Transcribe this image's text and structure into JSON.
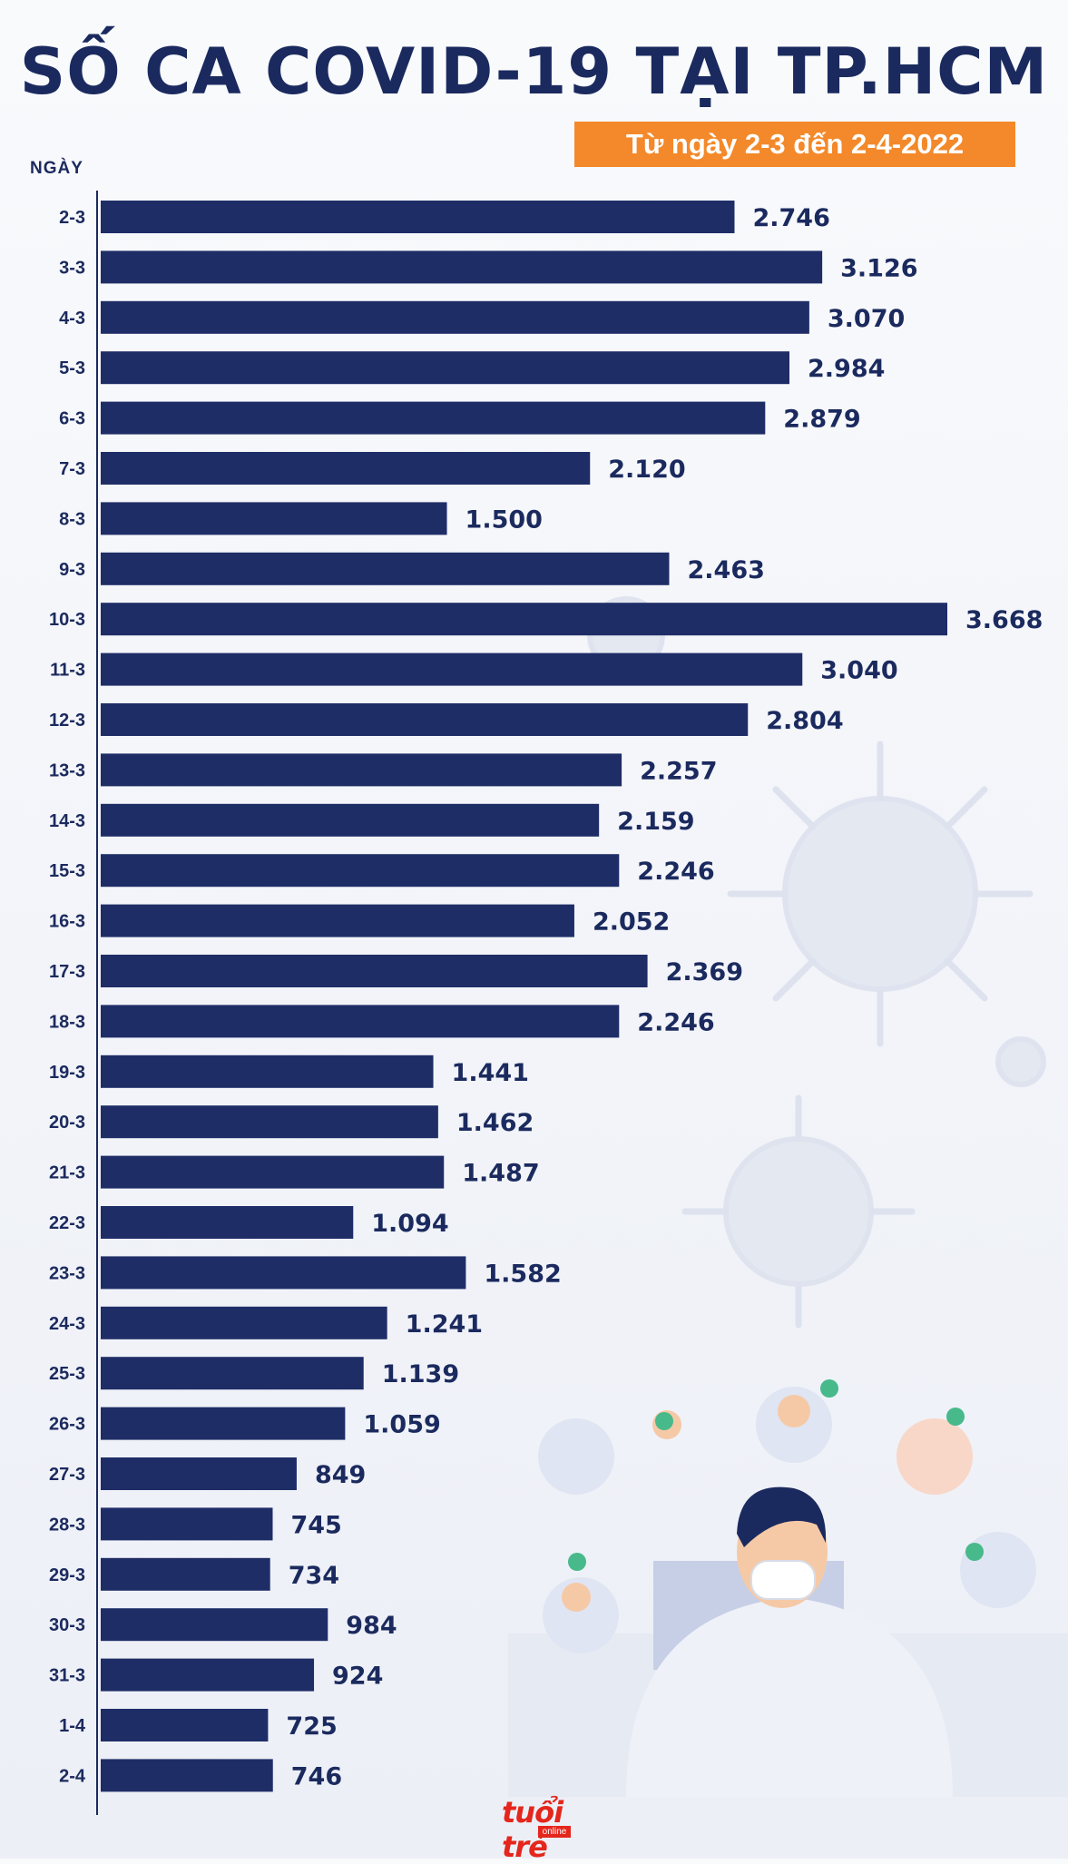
{
  "colors": {
    "title": "#1b2a5e",
    "bar": "#1f2d67",
    "label": "#1b2a5e",
    "badge": "#f3892a",
    "logo": "#e4261c"
  },
  "logo": {
    "name": "tuổi trẻ",
    "sub": "online"
  },
  "chart_data": {
    "type": "bar",
    "orientation": "horizontal",
    "title": "SỐ CA COVID-19 TẠI TP.HCM",
    "subtitle": "Từ ngày 2-3 đến 2-4-2022",
    "ylabel": "NGÀY",
    "xlim": [
      0,
      3668
    ],
    "categories": [
      "2-3",
      "3-3",
      "4-3",
      "5-3",
      "6-3",
      "7-3",
      "8-3",
      "9-3",
      "10-3",
      "11-3",
      "12-3",
      "13-3",
      "14-3",
      "15-3",
      "16-3",
      "17-3",
      "18-3",
      "19-3",
      "20-3",
      "21-3",
      "22-3",
      "23-3",
      "24-3",
      "25-3",
      "26-3",
      "27-3",
      "28-3",
      "29-3",
      "30-3",
      "31-3",
      "1-4",
      "2-4"
    ],
    "values": [
      2746,
      3126,
      3070,
      2984,
      2879,
      2120,
      1500,
      2463,
      3668,
      3040,
      2804,
      2257,
      2159,
      2246,
      2052,
      2369,
      2246,
      1441,
      1462,
      1487,
      1094,
      1582,
      1241,
      1139,
      1059,
      849,
      745,
      734,
      984,
      924,
      725,
      746
    ],
    "value_labels": [
      "2.746",
      "3.126",
      "3.070",
      "2.984",
      "2.879",
      "2.120",
      "1.500",
      "2.463",
      "3.668",
      "3.040",
      "2.804",
      "2.257",
      "2.159",
      "2.246",
      "2.052",
      "2.369",
      "2.246",
      "1.441",
      "1.462",
      "1.487",
      "1.094",
      "1.582",
      "1.241",
      "1.139",
      "1.059",
      "849",
      "745",
      "734",
      "984",
      "924",
      "725",
      "746"
    ]
  }
}
